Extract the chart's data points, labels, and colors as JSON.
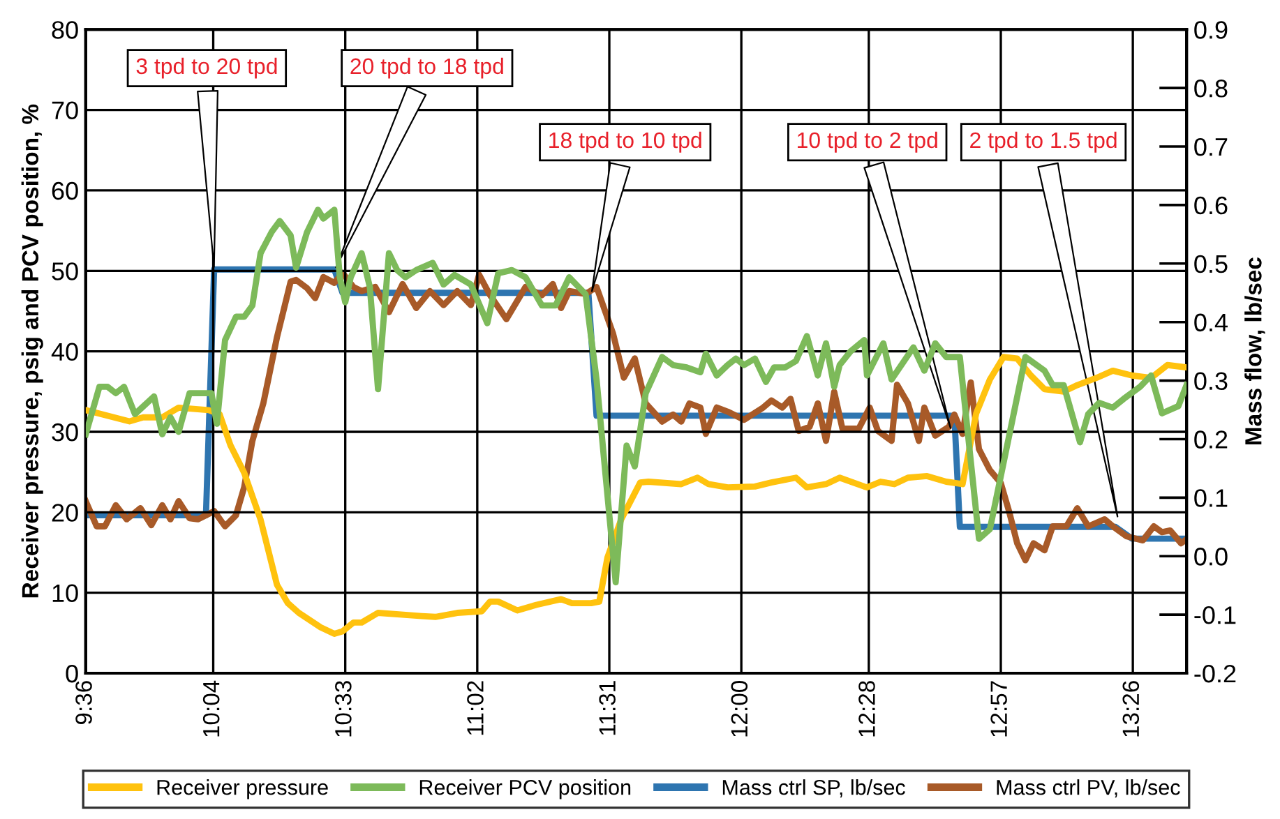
{
  "chart_data": {
    "type": "line",
    "ylabel": "Receiver pressure, psig and PCV position, %",
    "y2label": "Mass flow, lb/sec",
    "xlim": [
      9.6,
      13.63
    ],
    "xticks": [
      {
        "value": 9.6,
        "label": "9:36"
      },
      {
        "value": 10.0667,
        "label": "10:04"
      },
      {
        "value": 10.55,
        "label": "10:33"
      },
      {
        "value": 11.0333,
        "label": "11:02"
      },
      {
        "value": 11.5167,
        "label": "11:31"
      },
      {
        "value": 12.0,
        "label": "12:00"
      },
      {
        "value": 12.4667,
        "label": "12:28"
      },
      {
        "value": 12.95,
        "label": "12:57"
      },
      {
        "value": 13.4333,
        "label": "13:26"
      }
    ],
    "ylim": [
      0,
      80
    ],
    "yticks": [
      0,
      10,
      20,
      30,
      40,
      50,
      60,
      70,
      80
    ],
    "y2lim": [
      -0.2,
      0.9
    ],
    "y2ticks": [
      -0.2,
      -0.1,
      {
        "value": 0,
        "label": "0.0"
      },
      0.1,
      0.2,
      0.3,
      0.4,
      0.5,
      0.6,
      0.7,
      0.8,
      0.9
    ],
    "grid": true,
    "legend": "bottom",
    "line_style": "solid",
    "marker": "none",
    "series": [
      {
        "name": "Receiver pressure",
        "color": "#ffc20e",
        "x": [
          9.6,
          9.76,
          9.81,
          9.88,
          9.94,
          10.05,
          10.09,
          10.13,
          10.18,
          10.24,
          10.3,
          10.34,
          10.38,
          10.46,
          10.51,
          10.54,
          10.58,
          10.61,
          10.67,
          10.83,
          10.88,
          10.96,
          11.05,
          11.08,
          11.11,
          11.18,
          11.25,
          11.34,
          11.38,
          11.45,
          11.48,
          11.51,
          11.56,
          11.63,
          11.66,
          11.78,
          11.84,
          11.88,
          11.95,
          12.05,
          12.11,
          12.2,
          12.24,
          12.31,
          12.36,
          12.45,
          12.46,
          12.51,
          12.56,
          12.61,
          12.68,
          12.75,
          12.81,
          12.86,
          12.91,
          12.96,
          13.01,
          13.06,
          13.11,
          13.18,
          13.23,
          13.3,
          13.36,
          13.43,
          13.5,
          13.56,
          13.63
        ],
        "values": [
          32.7,
          31.3,
          31.8,
          31.8,
          33.0,
          32.7,
          32.2,
          28.3,
          24.9,
          19.1,
          11.0,
          8.7,
          7.5,
          5.7,
          4.9,
          5.2,
          6.3,
          6.3,
          7.5,
          7.1,
          7.0,
          7.5,
          7.7,
          8.9,
          8.9,
          7.8,
          8.5,
          9.2,
          8.7,
          8.7,
          8.9,
          14.4,
          19.1,
          23.7,
          23.8,
          23.5,
          24.3,
          23.5,
          23.1,
          23.2,
          23.7,
          24.3,
          23.1,
          23.5,
          24.3,
          23.2,
          23.1,
          23.8,
          23.5,
          24.3,
          24.5,
          23.8,
          23.5,
          32.3,
          36.5,
          39.3,
          39.1,
          37.0,
          35.3,
          35.0,
          35.8,
          36.7,
          37.6,
          37.0,
          36.7,
          38.3,
          38.0
        ]
      },
      {
        "name": "Receiver PCV position",
        "color": "#7dba5a",
        "x": [
          9.6,
          9.65,
          9.68,
          9.71,
          9.74,
          9.78,
          9.85,
          9.88,
          9.91,
          9.94,
          9.98,
          10.03,
          10.06,
          10.08,
          10.11,
          10.15,
          10.18,
          10.21,
          10.24,
          10.28,
          10.31,
          10.35,
          10.37,
          10.41,
          10.45,
          10.47,
          10.51,
          10.53,
          10.55,
          10.57,
          10.61,
          10.64,
          10.67,
          10.71,
          10.74,
          10.77,
          10.81,
          10.87,
          10.91,
          10.95,
          11.01,
          11.07,
          11.11,
          11.16,
          11.21,
          11.27,
          11.32,
          11.37,
          11.43,
          11.47,
          11.54,
          11.58,
          11.61,
          11.65,
          11.71,
          11.75,
          11.8,
          11.85,
          11.87,
          11.91,
          11.95,
          11.98,
          12.01,
          12.05,
          12.09,
          12.12,
          12.16,
          12.2,
          12.24,
          12.28,
          12.31,
          12.34,
          12.36,
          12.4,
          12.45,
          12.46,
          12.52,
          12.55,
          12.63,
          12.67,
          12.71,
          12.75,
          12.8,
          12.83,
          12.87,
          12.91,
          13.04,
          13.11,
          13.14,
          13.18,
          13.24,
          13.27,
          13.31,
          13.36,
          13.4,
          13.46,
          13.5,
          13.54,
          13.6,
          13.63
        ],
        "values": [
          29.7,
          35.6,
          35.6,
          34.8,
          35.6,
          32.2,
          34.4,
          29.7,
          31.8,
          30.0,
          34.8,
          34.8,
          34.8,
          31.0,
          41.4,
          44.3,
          44.3,
          45.7,
          52.2,
          54.8,
          56.2,
          54.4,
          50.4,
          54.8,
          57.6,
          56.5,
          57.6,
          49.2,
          46.1,
          49.2,
          52.2,
          48.0,
          35.3,
          52.2,
          50.1,
          49.2,
          50.1,
          51.0,
          48.3,
          49.5,
          48.3,
          43.5,
          49.7,
          50.1,
          49.2,
          45.7,
          45.7,
          49.2,
          47.1,
          36.5,
          11.3,
          28.3,
          25.7,
          34.8,
          39.3,
          38.3,
          38.0,
          37.4,
          39.7,
          37.0,
          38.3,
          39.1,
          38.3,
          39.1,
          36.2,
          38.0,
          38.0,
          38.8,
          41.9,
          37.0,
          41.0,
          35.6,
          38.3,
          40.0,
          41.4,
          37.0,
          41.0,
          36.5,
          40.5,
          37.6,
          41.0,
          39.3,
          39.3,
          29.6,
          16.7,
          17.9,
          39.3,
          37.6,
          35.8,
          35.8,
          28.7,
          32.2,
          33.6,
          33.0,
          34.1,
          35.6,
          37.0,
          32.3,
          33.2,
          35.8
        ]
      },
      {
        "name": "Mass ctrl SP, lb/sec",
        "color": "#2e75b0",
        "axis": "y2",
        "x": [
          9.6,
          10.04,
          10.07,
          10.51,
          10.54,
          11.44,
          11.47,
          12.78,
          12.8,
          13.37,
          13.43,
          13.63
        ],
        "values": [
          0.07,
          0.07,
          0.49,
          0.49,
          0.45,
          0.45,
          0.24,
          0.24,
          0.05,
          0.05,
          0.03,
          0.03
        ]
      },
      {
        "name": "Mass ctrl PV, lb/sec",
        "color": "#a85a28",
        "axis": "y2",
        "x": [
          9.6,
          9.64,
          9.67,
          9.71,
          9.75,
          9.8,
          9.84,
          9.88,
          9.91,
          9.94,
          9.98,
          10.01,
          10.07,
          10.11,
          10.15,
          10.18,
          10.21,
          10.25,
          10.3,
          10.35,
          10.37,
          10.41,
          10.44,
          10.47,
          10.51,
          10.54,
          10.58,
          10.61,
          10.66,
          10.71,
          10.76,
          10.81,
          10.86,
          10.91,
          10.96,
          11.01,
          11.04,
          11.08,
          11.14,
          11.21,
          11.27,
          11.31,
          11.34,
          11.37,
          11.43,
          11.47,
          11.53,
          11.57,
          11.61,
          11.65,
          11.71,
          11.75,
          11.78,
          11.81,
          11.85,
          11.87,
          11.91,
          11.95,
          12.01,
          12.08,
          12.11,
          12.15,
          12.18,
          12.21,
          12.25,
          12.28,
          12.31,
          12.34,
          12.37,
          12.43,
          12.47,
          12.5,
          12.55,
          12.57,
          12.61,
          12.65,
          12.67,
          12.71,
          12.76,
          12.78,
          12.81,
          12.84,
          12.87,
          12.91,
          12.95,
          12.98,
          13.01,
          13.04,
          13.07,
          13.11,
          13.14,
          13.19,
          13.23,
          13.27,
          13.33,
          13.36,
          13.41,
          13.47,
          13.51,
          13.54,
          13.57,
          13.61,
          13.63
        ],
        "values": [
          0.094,
          0.051,
          0.051,
          0.087,
          0.063,
          0.082,
          0.053,
          0.087,
          0.063,
          0.094,
          0.065,
          0.063,
          0.077,
          0.051,
          0.07,
          0.118,
          0.197,
          0.261,
          0.374,
          0.469,
          0.472,
          0.458,
          0.441,
          0.477,
          0.467,
          0.484,
          0.46,
          0.453,
          0.46,
          0.417,
          0.465,
          0.424,
          0.453,
          0.429,
          0.453,
          0.429,
          0.481,
          0.446,
          0.405,
          0.46,
          0.446,
          0.465,
          0.424,
          0.453,
          0.448,
          0.46,
          0.381,
          0.305,
          0.338,
          0.261,
          0.23,
          0.242,
          0.23,
          0.261,
          0.254,
          0.209,
          0.254,
          0.247,
          0.233,
          0.254,
          0.266,
          0.254,
          0.269,
          0.214,
          0.221,
          0.261,
          0.197,
          0.281,
          0.218,
          0.218,
          0.254,
          0.214,
          0.197,
          0.293,
          0.261,
          0.197,
          0.254,
          0.206,
          0.221,
          0.242,
          0.209,
          0.297,
          0.183,
          0.147,
          0.125,
          0.077,
          0.022,
          -0.007,
          0.022,
          0.01,
          0.051,
          0.051,
          0.082,
          0.051,
          0.063,
          0.051,
          0.034,
          0.027,
          0.051,
          0.041,
          0.044,
          0.022,
          0.029
        ]
      }
    ],
    "annotations": [
      {
        "text": "3 tpd to 20 tpd",
        "x": 10.07,
        "y": 50
      },
      {
        "text": "20 tpd to 18 tpd",
        "x": 10.51,
        "y": 50
      },
      {
        "text": "18 tpd to 10 tpd",
        "x": 11.45,
        "y": 47
      },
      {
        "text": "10 tpd to 2 tpd",
        "x": 12.77,
        "y": 30
      },
      {
        "text": "2 tpd to 1.5 tpd",
        "x": 13.38,
        "y": 19
      }
    ]
  }
}
